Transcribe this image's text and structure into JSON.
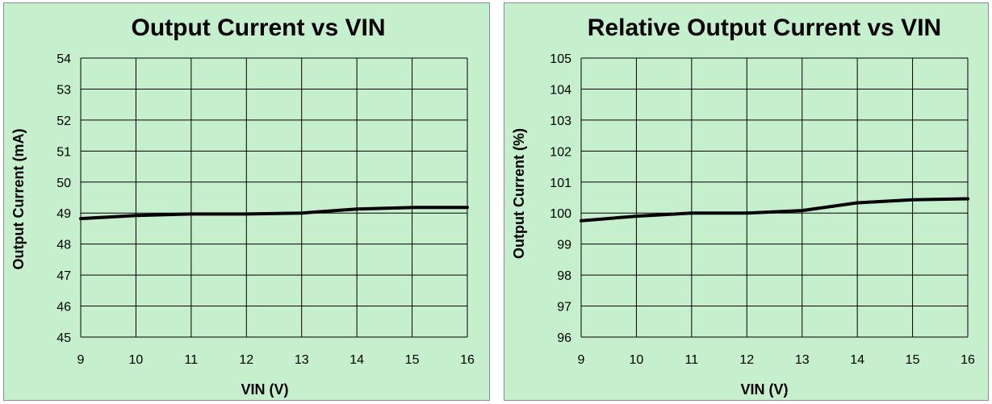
{
  "chart_data": [
    {
      "type": "line",
      "title": "Output Current vs VIN",
      "xlabel": "VIN (V)",
      "ylabel": "Output Current (mA)",
      "xlim": [
        9,
        16
      ],
      "ylim": [
        45,
        54
      ],
      "x_ticks": [
        "9",
        "10",
        "11",
        "12",
        "13",
        "14",
        "15",
        "16"
      ],
      "y_ticks": [
        "45",
        "46",
        "47",
        "48",
        "49",
        "50",
        "51",
        "52",
        "53",
        "54"
      ],
      "grid": true,
      "legend": "none",
      "line_color": "#000000",
      "background_color": "#c6efce",
      "series": [
        {
          "x": [
            9,
            10,
            11,
            12,
            13,
            14,
            15,
            16
          ],
          "values": [
            48.82,
            48.92,
            48.97,
            48.97,
            49.0,
            49.13,
            49.18,
            49.18
          ]
        }
      ]
    },
    {
      "type": "line",
      "title": "Relative Output Current vs VIN",
      "xlabel": "VIN (V)",
      "ylabel": "Output Current (%)",
      "xlim": [
        9,
        16
      ],
      "ylim": [
        96,
        105
      ],
      "x_ticks": [
        "9",
        "10",
        "11",
        "12",
        "13",
        "14",
        "15",
        "16"
      ],
      "y_ticks": [
        "96",
        "97",
        "98",
        "99",
        "100",
        "101",
        "102",
        "103",
        "104",
        "105"
      ],
      "grid": true,
      "legend": "none",
      "line_color": "#000000",
      "background_color": "#c6efce",
      "series": [
        {
          "x": [
            9,
            10,
            11,
            12,
            13,
            14,
            15,
            16
          ],
          "values": [
            99.75,
            99.9,
            100.0,
            100.0,
            100.08,
            100.33,
            100.43,
            100.46
          ]
        }
      ]
    }
  ]
}
